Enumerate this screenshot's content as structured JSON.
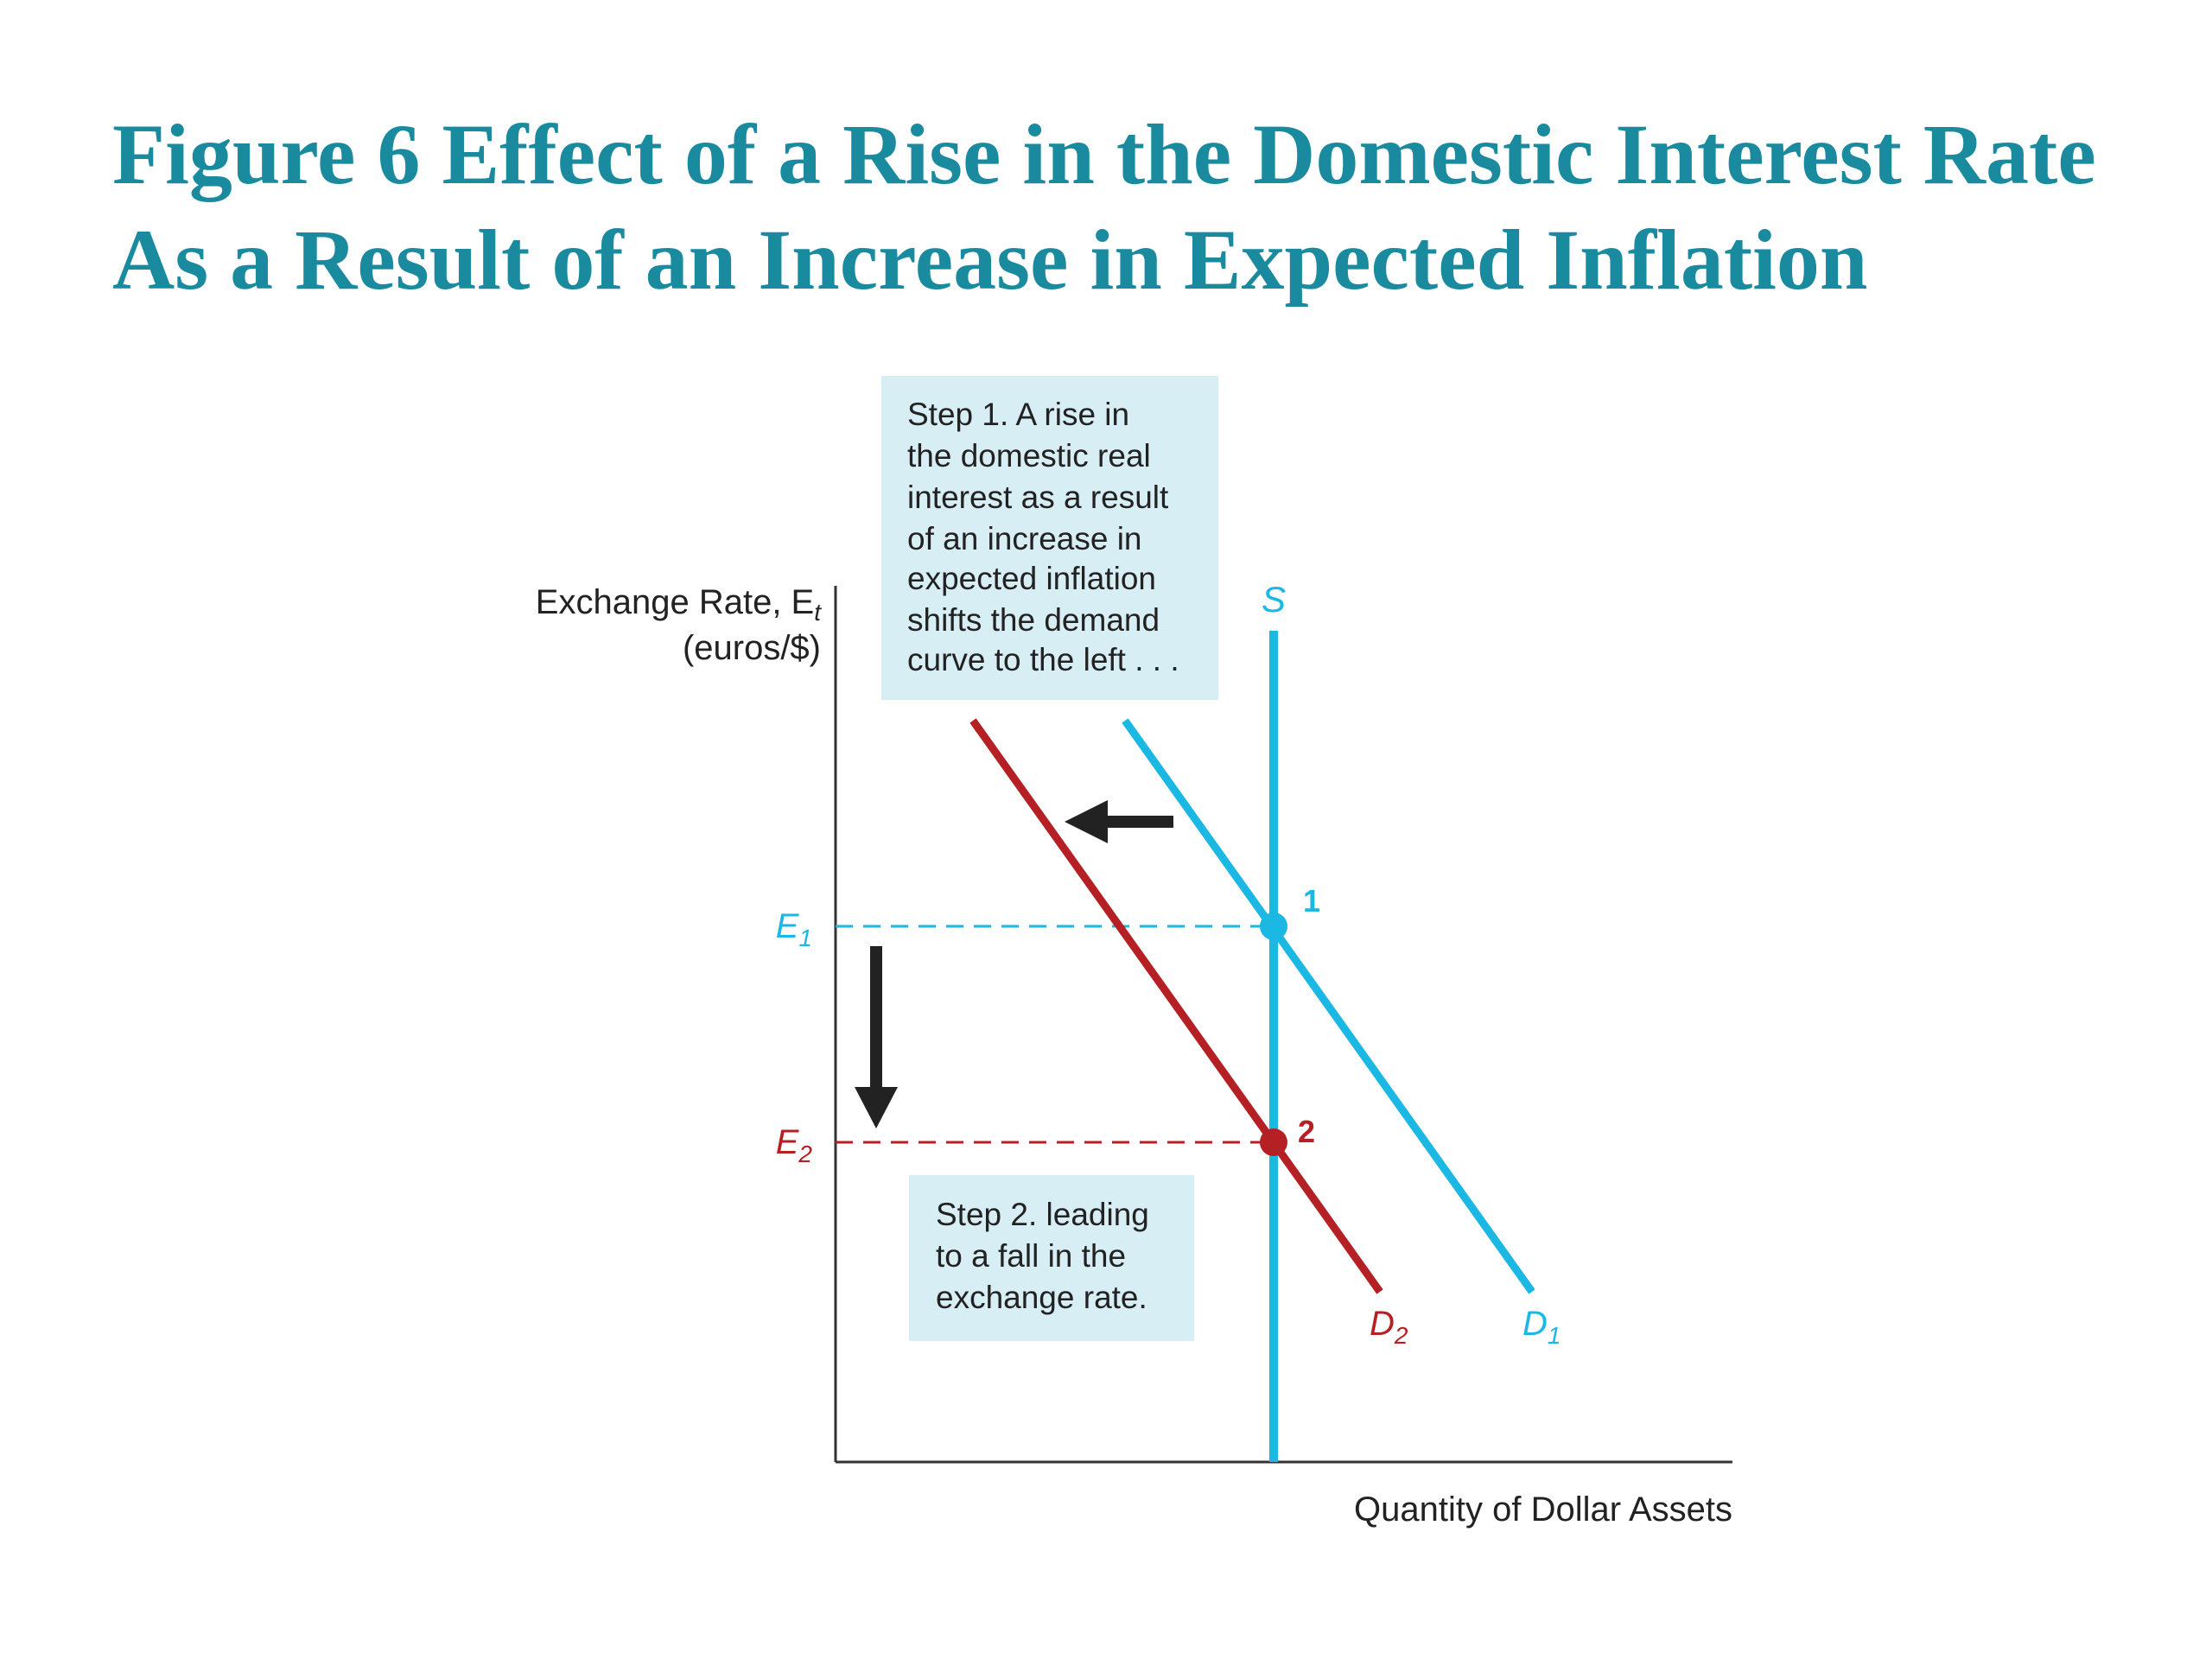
{
  "title": {
    "line1": "Figure 6 Effect of a Rise in the Domestic Interest Rate",
    "line2": "As a Result of an Increase in Expected Inflation"
  },
  "diagram": {
    "y_axis_label": {
      "main": "Exchange Rate, E",
      "subscript": "t",
      "units": "(euros/$)"
    },
    "x_axis_label": "Quantity of Dollar Assets",
    "supply_label": "S",
    "demand_initial": {
      "letter": "D",
      "subscript": "1"
    },
    "demand_new": {
      "letter": "D",
      "subscript": "2"
    },
    "e1_label": {
      "letter": "E",
      "subscript": "1"
    },
    "e2_label": {
      "letter": "E",
      "subscript": "2"
    },
    "point1_label": "1",
    "point2_label": "2",
    "step1_lines": [
      "Step 1. A rise in",
      "the domestic real",
      "interest as a result",
      "of an increase in",
      "expected inflation",
      "shifts the demand",
      "curve to the left . . ."
    ],
    "step2_lines": [
      "Step 2. leading",
      "to a fall in the",
      "exchange rate."
    ]
  },
  "colors": {
    "title": "#1a8a9e",
    "supply_and_d1": "#1ab8e3",
    "d2": "#b52024",
    "callout_bg": "#d8eef5",
    "axis": "#333333",
    "arrow": "#222222"
  }
}
